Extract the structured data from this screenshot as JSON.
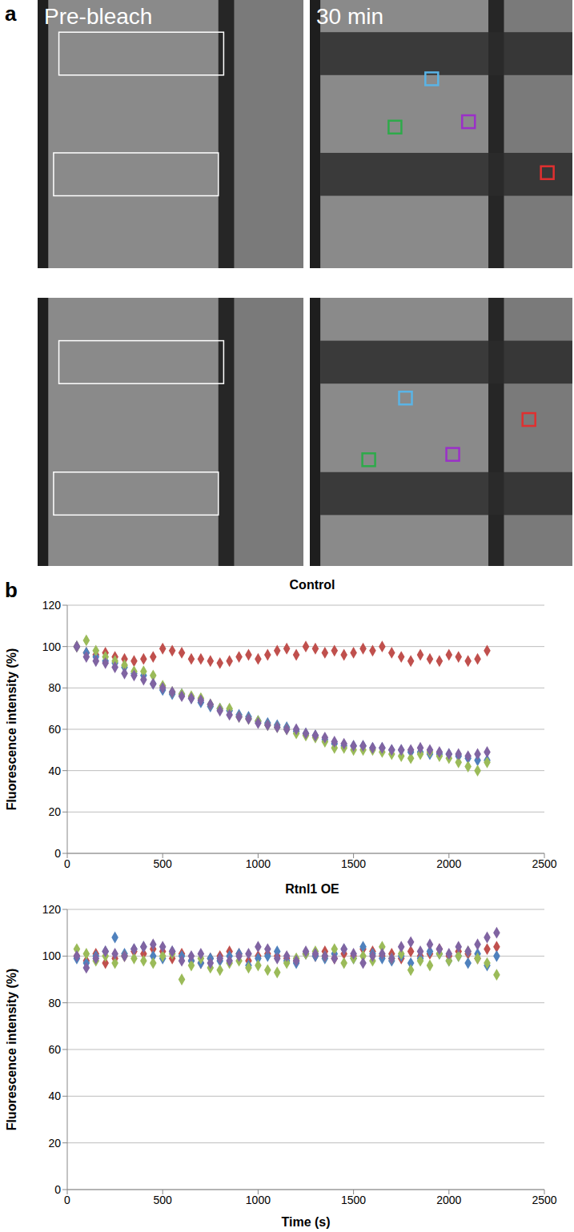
{
  "panel_a": {
    "label": "a",
    "image_titles": [
      "Pre-bleach",
      "30 min"
    ]
  },
  "chart_data": [
    {
      "type": "scatter",
      "panel_label": "b",
      "title": "Control",
      "y_label": "Fluorescence intensity (%)",
      "marker": "diamond",
      "grid": true,
      "xlim": [
        0,
        2500
      ],
      "xticks": [
        0,
        500,
        1000,
        1500,
        2000,
        2500
      ],
      "ylim": [
        0,
        120
      ],
      "yticks": [
        0,
        20,
        40,
        60,
        80,
        100,
        120
      ],
      "x": [
        50,
        100,
        150,
        200,
        250,
        300,
        350,
        400,
        450,
        500,
        550,
        600,
        650,
        700,
        750,
        800,
        850,
        900,
        950,
        1000,
        1050,
        1100,
        1150,
        1200,
        1250,
        1300,
        1350,
        1400,
        1450,
        1500,
        1550,
        1600,
        1650,
        1700,
        1750,
        1800,
        1850,
        1900,
        1950,
        2000,
        2050,
        2100,
        2150,
        2200
      ],
      "series": [
        {
          "color": "#c0504d",
          "values": [
            100,
            97,
            96,
            97,
            95,
            94,
            93,
            94,
            95,
            99,
            98,
            97,
            94,
            94,
            93,
            92,
            93,
            95,
            96,
            94,
            96,
            98,
            99,
            96,
            100,
            99,
            97,
            98,
            96,
            97,
            99,
            98,
            100,
            97,
            95,
            93,
            96,
            94,
            93,
            96,
            95,
            93,
            94,
            98
          ]
        },
        {
          "color": "#4f81bd",
          "values": [
            100,
            97,
            95,
            93,
            92,
            90,
            87,
            86,
            82,
            79,
            77,
            77,
            75,
            73,
            71,
            70,
            69,
            67,
            66,
            64,
            63,
            62,
            61,
            59,
            58,
            57,
            55,
            53,
            52,
            52,
            52,
            51,
            51,
            50,
            50,
            49,
            49,
            48,
            48,
            48,
            47,
            46,
            45,
            45
          ]
        },
        {
          "color": "#9bbb59",
          "values": [
            100,
            103,
            98,
            95,
            93,
            91,
            88,
            88,
            86,
            81,
            78,
            77,
            76,
            75,
            72,
            70,
            70,
            66,
            65,
            64,
            62,
            61,
            60,
            58,
            57,
            56,
            54,
            51,
            51,
            50,
            50,
            50,
            49,
            48,
            47,
            46,
            48,
            49,
            47,
            46,
            44,
            42,
            40,
            44
          ]
        },
        {
          "color": "#8064a2",
          "values": [
            100,
            95,
            93,
            92,
            90,
            87,
            86,
            84,
            82,
            80,
            78,
            76,
            75,
            74,
            72,
            69,
            67,
            66,
            65,
            63,
            62,
            61,
            60,
            60,
            58,
            57,
            56,
            54,
            53,
            52,
            52,
            51,
            51,
            50,
            50,
            50,
            51,
            50,
            49,
            48,
            48,
            47,
            48,
            49
          ]
        }
      ]
    },
    {
      "type": "scatter",
      "title": "Rtnl1 OE",
      "x_label": "Time (s)",
      "y_label": "Fluorescence intensity (%)",
      "marker": "diamond",
      "grid": true,
      "xlim": [
        0,
        2500
      ],
      "xticks": [
        0,
        500,
        1000,
        1500,
        2000,
        2500
      ],
      "ylim": [
        0,
        120
      ],
      "yticks": [
        0,
        20,
        40,
        60,
        80,
        100,
        120
      ],
      "x": [
        50,
        100,
        150,
        200,
        250,
        300,
        350,
        400,
        450,
        500,
        550,
        600,
        650,
        700,
        750,
        800,
        850,
        900,
        950,
        1000,
        1050,
        1100,
        1150,
        1200,
        1250,
        1300,
        1350,
        1400,
        1450,
        1500,
        1550,
        1600,
        1650,
        1700,
        1750,
        1800,
        1850,
        1900,
        1950,
        2000,
        2050,
        2100,
        2150,
        2200,
        2250
      ],
      "series": [
        {
          "color": "#c0504d",
          "values": [
            100,
            98,
            101,
            97,
            99,
            100,
            102,
            101,
            103,
            102,
            99,
            101,
            98,
            97,
            99,
            100,
            102,
            101,
            98,
            100,
            101,
            100,
            99,
            98,
            101,
            100,
            102,
            99,
            101,
            100,
            103,
            102,
            100,
            101,
            99,
            102,
            100,
            101,
            103,
            100,
            102,
            101,
            99,
            103,
            104
          ]
        },
        {
          "color": "#4f81bd",
          "values": [
            99,
            97,
            100,
            102,
            108,
            101,
            103,
            104,
            100,
            99,
            102,
            100,
            98,
            97,
            99,
            98,
            100,
            101,
            96,
            99,
            100,
            102,
            98,
            97,
            101,
            100,
            99,
            101,
            103,
            99,
            104,
            101,
            99,
            98,
            100,
            97,
            99,
            102,
            101,
            98,
            100,
            97,
            101,
            96,
            100
          ]
        },
        {
          "color": "#9bbb59",
          "values": [
            103,
            101,
            98,
            100,
            97,
            100,
            99,
            98,
            97,
            100,
            101,
            90,
            96,
            99,
            95,
            94,
            97,
            98,
            95,
            96,
            94,
            93,
            97,
            99,
            101,
            102,
            100,
            103,
            97,
            99,
            100,
            98,
            104,
            99,
            101,
            94,
            98,
            96,
            101,
            98,
            100,
            102,
            99,
            97,
            92
          ]
        },
        {
          "color": "#8064a2",
          "values": [
            100,
            95,
            99,
            102,
            101,
            100,
            103,
            104,
            105,
            104,
            102,
            98,
            100,
            101,
            97,
            99,
            98,
            100,
            101,
            104,
            103,
            99,
            100,
            98,
            102,
            101,
            100,
            99,
            103,
            101,
            97,
            100,
            101,
            99,
            104,
            106,
            102,
            105,
            103,
            101,
            104,
            102,
            105,
            108,
            110
          ]
        }
      ]
    }
  ]
}
